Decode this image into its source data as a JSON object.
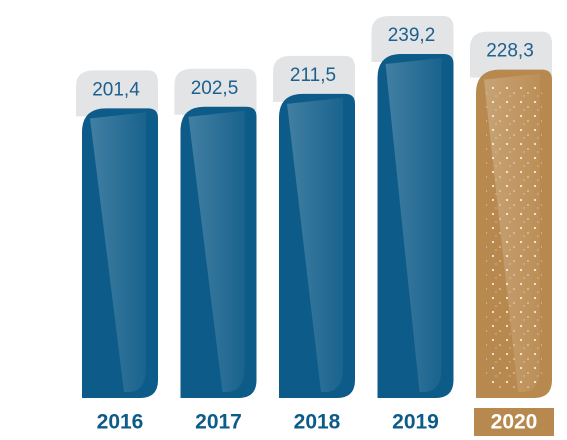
{
  "chart_data": {
    "type": "bar",
    "categories": [
      "2016",
      "2017",
      "2018",
      "2019",
      "2020"
    ],
    "values": [
      201.4,
      202.5,
      211.5,
      239.2,
      228.3
    ],
    "value_labels": [
      "201,4",
      "202,5",
      "211,5",
      "239,2",
      "228,3"
    ],
    "colors": [
      "#0d5b88",
      "#0d5b88",
      "#0d5b88",
      "#0d5b88",
      "#b8894e"
    ]
  }
}
